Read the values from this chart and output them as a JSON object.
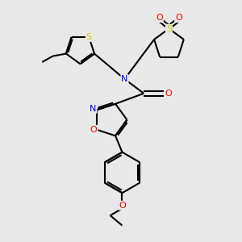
{
  "background_color": "#e8e8e8",
  "atom_colors": {
    "S": "#cccc00",
    "O": "#ff0000",
    "N": "#0000ff",
    "C": "#000000"
  },
  "bond_color": "#000000",
  "bond_width": 1.5,
  "figsize": [
    3.0,
    3.0
  ],
  "dpi": 100,
  "xlim": [
    0,
    10
  ],
  "ylim": [
    0,
    10
  ]
}
